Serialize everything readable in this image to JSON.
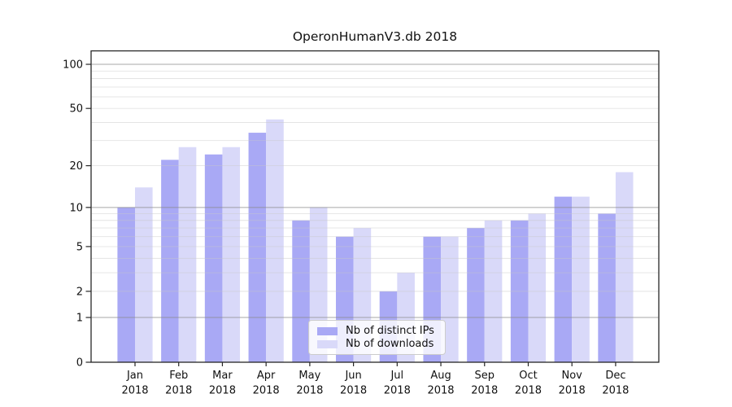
{
  "chart_data": {
    "type": "bar",
    "title": "OperonHumanV3.db 2018",
    "categories": [
      "Jan 2018",
      "Feb 2018",
      "Mar 2018",
      "Apr 2018",
      "May 2018",
      "Jun 2018",
      "Jul 2018",
      "Aug 2018",
      "Sep 2018",
      "Oct 2018",
      "Nov 2018",
      "Dec 2018"
    ],
    "series": [
      {
        "name": "Nb of distinct IPs",
        "color": "#a9a9f5",
        "values": [
          10,
          22,
          24,
          34,
          8,
          6,
          2,
          6,
          7,
          8,
          12,
          9
        ]
      },
      {
        "name": "Nb of downloads",
        "color": "#d9d9f9",
        "values": [
          14,
          27,
          27,
          42,
          10,
          7,
          3,
          6,
          8,
          9,
          12,
          18
        ]
      }
    ],
    "xlabel": "",
    "ylabel": "",
    "yscale": "log1p",
    "ylim": [
      0,
      123
    ],
    "yticks": [
      0,
      1,
      2,
      5,
      10,
      20,
      50,
      100
    ],
    "grid": {
      "on": true,
      "major": [
        1,
        10,
        100
      ],
      "minor": [
        2,
        3,
        4,
        5,
        6,
        7,
        8,
        9,
        20,
        30,
        40,
        50,
        60,
        70,
        80,
        90
      ]
    },
    "legend_position": "lower center",
    "colors": {
      "spine": "#262626",
      "tick_label": "#111111",
      "grid_major": "#8a8a8a",
      "grid_minor": "#c9c9c9",
      "background": "#ffffff",
      "legend_border": "#cccccc"
    }
  }
}
